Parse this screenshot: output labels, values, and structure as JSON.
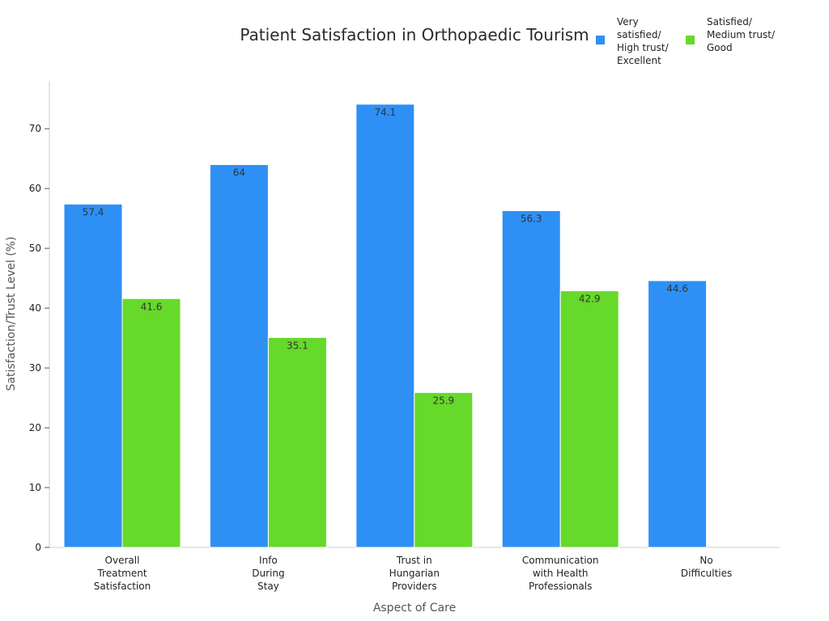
{
  "chart_data": {
    "type": "bar",
    "title": "Patient Satisfaction in Orthopaedic Tourism",
    "xlabel": "Aspect of Care",
    "ylabel": "Satisfaction/Trust Level (%)",
    "ylim": [
      0,
      78
    ],
    "yticks": [
      0,
      10,
      20,
      30,
      40,
      50,
      60,
      70
    ],
    "grid": false,
    "legend_position": "top-right",
    "categories": [
      [
        "Overall",
        "Treatment",
        "Satisfaction"
      ],
      [
        "Info",
        "During",
        "Stay"
      ],
      [
        "Trust in",
        "Hungarian",
        "Providers"
      ],
      [
        "Communication",
        "with Health",
        "Professionals"
      ],
      [
        "No",
        "Difficulties"
      ]
    ],
    "series": [
      {
        "name": "Very satisfied/ High trust/ Excellent",
        "legend_lines": [
          "Very",
          "satisfied/",
          "High trust/",
          "Excellent"
        ],
        "color": "#2E90F5",
        "values": [
          57.4,
          64,
          74.1,
          56.3,
          44.6
        ]
      },
      {
        "name": "Satisfied/ Medium trust/ Good",
        "legend_lines": [
          "Satisfied/",
          "Medium trust/",
          "Good"
        ],
        "color": "#66D92A",
        "values": [
          41.6,
          35.1,
          25.9,
          42.9,
          null
        ]
      }
    ]
  }
}
